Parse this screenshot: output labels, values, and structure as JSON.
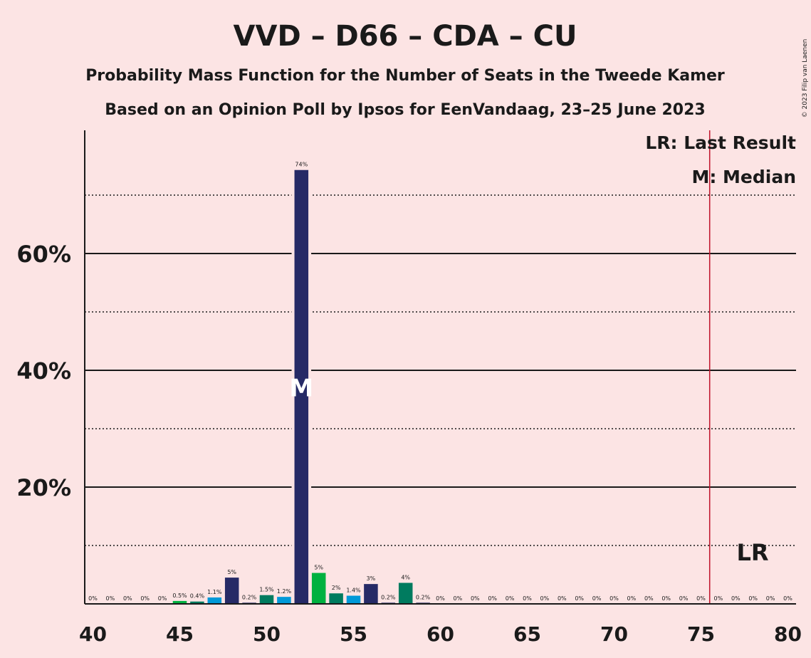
{
  "colors": {
    "background": "#fce4e4",
    "vvd": "#262a66",
    "d66": "#00b140",
    "cda": "#007b5f",
    "cu": "#0099d8",
    "last_result_line": "#c0122a"
  },
  "chart_data": {
    "type": "bar",
    "title": "VVD – D66 – CDA – CU",
    "subtitle": "Probability Mass Function for the Number of Seats in the Tweede Kamer",
    "subtitle2": "Based on an Opinion Poll by Ipsos for EenVandaag, 23–25 June 2023",
    "copyright": "© 2023 Filip van Laenen",
    "xlim": [
      40,
      80
    ],
    "ylim": [
      0,
      80
    ],
    "x_ticks": [
      40,
      45,
      50,
      55,
      60,
      65,
      70,
      75,
      80
    ],
    "y_ticks": [
      {
        "value": 20,
        "label": "20%"
      },
      {
        "value": 40,
        "label": "40%"
      },
      {
        "value": 60,
        "label": "60%"
      }
    ],
    "y_minor_gridlines": [
      10,
      30,
      50,
      70
    ],
    "seats": [
      40,
      41,
      42,
      43,
      44,
      45,
      46,
      47,
      48,
      49,
      50,
      51,
      52,
      53,
      54,
      55,
      56,
      57,
      58,
      59,
      60,
      61,
      62,
      63,
      64,
      65,
      66,
      67,
      68,
      69,
      70,
      71,
      72,
      73,
      74,
      75,
      76,
      77,
      78,
      79,
      80
    ],
    "values": [
      0,
      0,
      0,
      0,
      0,
      0.5,
      0.4,
      1.1,
      4.5,
      0.2,
      1.5,
      1.2,
      74.3,
      5.3,
      1.8,
      1.4,
      3.4,
      0.2,
      3.6,
      0.2,
      0,
      0,
      0,
      0,
      0,
      0,
      0,
      0,
      0,
      0,
      0,
      0,
      0,
      0,
      0,
      0,
      0,
      0,
      0,
      0,
      0
    ],
    "labels": [
      "0%",
      "0%",
      "0%",
      "0%",
      "0%",
      "0.5%",
      "0.4%",
      "1.1%",
      "5%",
      "0.2%",
      "1.5%",
      "1.2%",
      "74%",
      "5%",
      "2%",
      "1.4%",
      "3%",
      "0.2%",
      "4%",
      "0.2%",
      "0%",
      "0%",
      "0%",
      "0%",
      "0%",
      "0%",
      "0%",
      "0%",
      "0%",
      "0%",
      "0%",
      "0%",
      "0%",
      "0%",
      "0%",
      "0%",
      "0%",
      "0%",
      "0%",
      "0%",
      "0%"
    ],
    "bar_colors": [
      "vvd",
      "vvd",
      "vvd",
      "vvd",
      "vvd",
      "d66",
      "cda",
      "cu",
      "vvd",
      "vvd",
      "cda",
      "cu",
      "vvd",
      "d66",
      "cda",
      "cu",
      "vvd",
      "vvd",
      "cda",
      "vvd",
      "vvd",
      "vvd",
      "vvd",
      "vvd",
      "vvd",
      "vvd",
      "vvd",
      "vvd",
      "vvd",
      "vvd",
      "vvd",
      "vvd",
      "vvd",
      "vvd",
      "vvd",
      "vvd",
      "vvd",
      "vvd",
      "vvd",
      "vvd",
      "vvd"
    ],
    "median": {
      "seat": 52,
      "label": "M",
      "position": 37
    },
    "last_result": {
      "seat": 75.5,
      "label": "LR"
    },
    "legend": [
      "LR: Last Result",
      "M: Median"
    ],
    "legend_position": "top-right"
  }
}
